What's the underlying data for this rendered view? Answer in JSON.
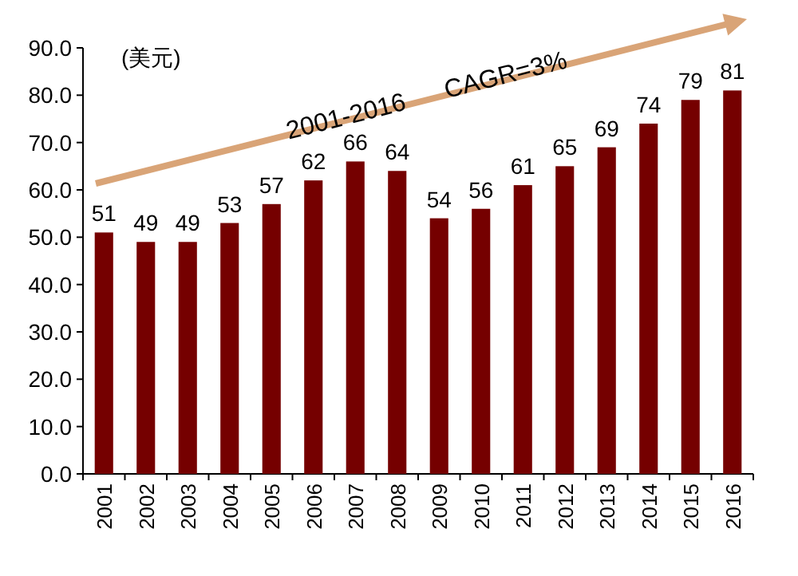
{
  "chart_data": {
    "type": "bar",
    "ylabel": "(美元)",
    "categories": [
      "2001",
      "2002",
      "2003",
      "2004",
      "2005",
      "2006",
      "2007",
      "2008",
      "2009",
      "2010",
      "2011",
      "2012",
      "2013",
      "2014",
      "2015",
      "2016"
    ],
    "values": [
      51,
      49,
      49,
      53,
      57,
      62,
      66,
      64,
      54,
      56,
      61,
      65,
      69,
      74,
      79,
      81
    ],
    "color": "#750000",
    "data_labels": true,
    "grid": false,
    "ylim": [
      0,
      90
    ],
    "yticks": [
      {
        "value": 0,
        "label": "0.0"
      },
      {
        "value": 10,
        "label": "10.0"
      },
      {
        "value": 20,
        "label": "20.0"
      },
      {
        "value": 30,
        "label": "30.0"
      },
      {
        "value": 40,
        "label": "40.0"
      },
      {
        "value": 50,
        "label": "50.0"
      },
      {
        "value": 60,
        "label": "60.0"
      },
      {
        "value": 70,
        "label": "70.0"
      },
      {
        "value": 80,
        "label": "80.0"
      },
      {
        "value": 90,
        "label": "90.0"
      }
    ],
    "annotations": [
      "2001-2016",
      "CAGR=3%"
    ]
  }
}
